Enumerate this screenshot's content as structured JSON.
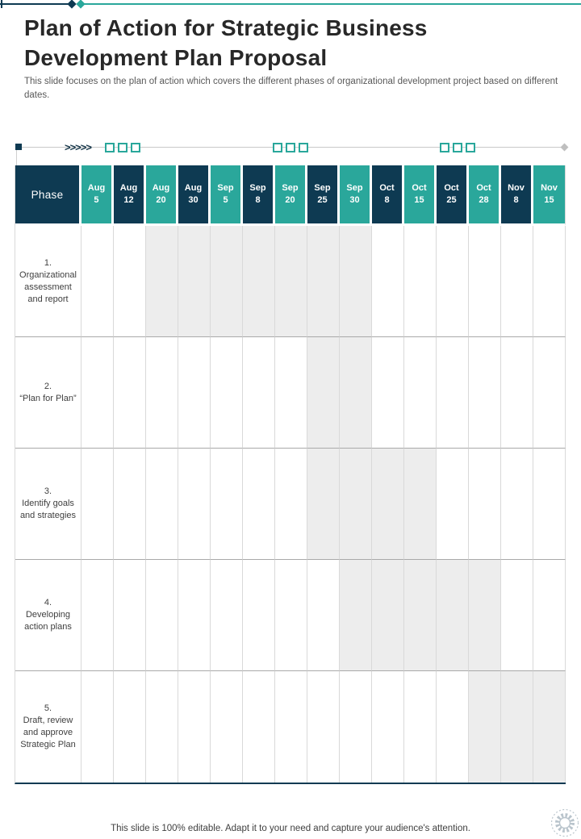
{
  "slide": {
    "title_lines": [
      "Plan of Action for Strategic Business",
      "Development Plan Proposal"
    ],
    "subtitle": "This slide focuses on the plan of action which covers the different phases of organizational development project based on different dates.",
    "footer": "This slide is 100% editable. Adapt it to your need and capture your audience's attention."
  },
  "decoration": {
    "chevrons": ">>>>>",
    "square_group_positions": [
      130,
      338,
      545
    ],
    "squares_per_group": 3
  },
  "colors": {
    "dark_navy": "#0E3A52",
    "teal": "#2AA79B",
    "bar_gray": "#EDEDED"
  },
  "table": {
    "phase_header": "Phase",
    "columns": [
      "Aug 5",
      "Aug 12",
      "Aug 20",
      "Aug 30",
      "Sep 5",
      "Sep 8",
      "Sep 20",
      "Sep 25",
      "Sep 30",
      "Oct 8",
      "Oct 15",
      "Oct 25",
      "Oct 28",
      "Nov 8",
      "Nov 15"
    ],
    "rows": [
      {
        "num": "1.",
        "text": "Organizational assessment and report",
        "bar_start": 3,
        "bar_end": 9
      },
      {
        "num": "2.",
        "text": "“Plan for Plan”",
        "bar_start": 8,
        "bar_end": 9
      },
      {
        "num": "3.",
        "text": "Identify goals and strategies",
        "bar_start": 8,
        "bar_end": 11
      },
      {
        "num": "4.",
        "text": "Developing action plans",
        "bar_start": 9,
        "bar_end": 13
      },
      {
        "num": "5.",
        "text": "Draft, review and approve Strategic Plan",
        "bar_start": 13,
        "bar_end": 15
      }
    ]
  }
}
